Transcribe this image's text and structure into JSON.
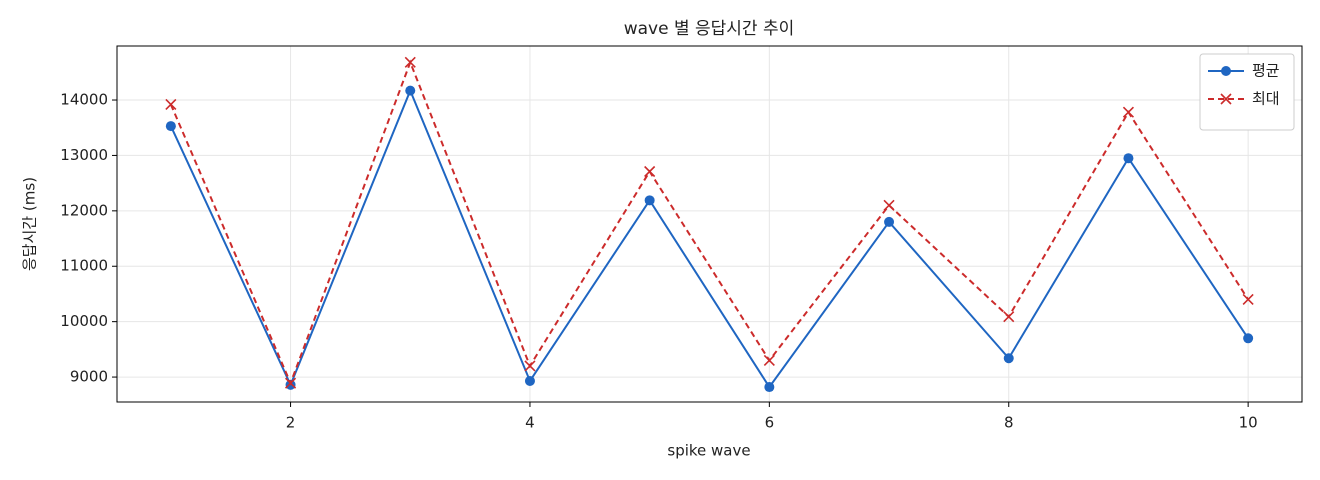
{
  "chart_data": {
    "type": "line",
    "title": "wave 별 응답시간 추이",
    "x_label": "spike wave",
    "y_label": "응답시간 (ms)",
    "x": [
      1,
      2,
      3,
      4,
      5,
      6,
      7,
      8,
      9,
      10
    ],
    "series": [
      {
        "name": "평균",
        "color": "#1f66c2",
        "marker": "circle",
        "dash": false,
        "values": [
          13530,
          8860,
          14170,
          8930,
          12190,
          8820,
          11800,
          9340,
          12950,
          9700
        ]
      },
      {
        "name": "최대",
        "color": "#cc2b2b",
        "marker": "x",
        "dash": true,
        "values": [
          13920,
          8890,
          14680,
          9200,
          12710,
          9300,
          12100,
          10090,
          13780,
          10400
        ]
      }
    ],
    "xlim": [
      0.55,
      10.45
    ],
    "ylim": [
      8550,
      14975
    ],
    "xticks": [
      2,
      4,
      6,
      8,
      10
    ],
    "yticks": [
      9000,
      10000,
      11000,
      12000,
      13000,
      14000
    ],
    "grid": true,
    "legend": "upper right"
  }
}
